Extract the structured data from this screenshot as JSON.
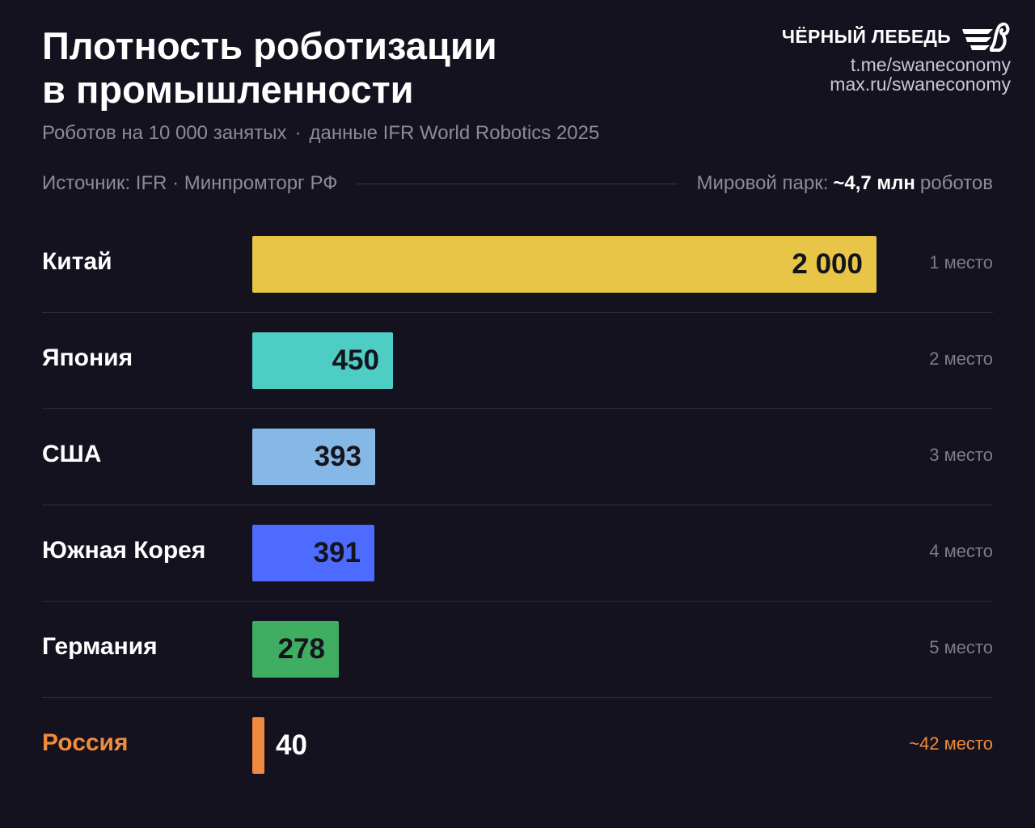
{
  "title_lines": [
    "Плотность роботизации",
    "в промышленности"
  ],
  "subtitle": {
    "left": "Роботов на 10 000 занятых",
    "separator": "·",
    "right": "данные IFR World Robotics 2025"
  },
  "brand": {
    "name": "ЧЁРНЫЙ ЛЕБЕДЬ",
    "logo_icon": "swan-logo-icon",
    "links": [
      "t.me/swaneconomy",
      "max.ru/swaneconomy"
    ]
  },
  "meta": {
    "source": "Источник: IFR · Минпромторг РФ",
    "fleet_prefix": "Мировой парк:",
    "fleet_value": "~4,7 млн",
    "fleet_suffix": "роботов"
  },
  "colors": {
    "background": "#13121e",
    "china": "#e8c547",
    "japan": "#4ecdc4",
    "usa": "#85b8e6",
    "korea": "#4d6bff",
    "germany": "#3fae62",
    "russia": "#f08a3e"
  },
  "chart_data": {
    "type": "bar",
    "orientation": "horizontal",
    "title": "Плотность роботизации в промышленности",
    "subtitle": "Роботов на 10 000 занятых · данные IFR World Robotics 2025",
    "xlim": [
      0,
      2000
    ],
    "grid": false,
    "legend": "none",
    "categories": [
      "Китай",
      "Япония",
      "США",
      "Южная Корея",
      "Германия",
      "Россия"
    ],
    "values": [
      2000,
      450,
      393,
      391,
      278,
      40
    ],
    "value_labels": [
      "2 000",
      "450",
      "393",
      "391",
      "278",
      "40"
    ],
    "ranks": [
      "1 место",
      "2 место",
      "3 место",
      "4 место",
      "5 место",
      "~42 место"
    ],
    "bar_colors": [
      "#e8c547",
      "#4ecdc4",
      "#85b8e6",
      "#4d6bff",
      "#3fae62",
      "#f08a3e"
    ],
    "highlight": "Россия"
  }
}
